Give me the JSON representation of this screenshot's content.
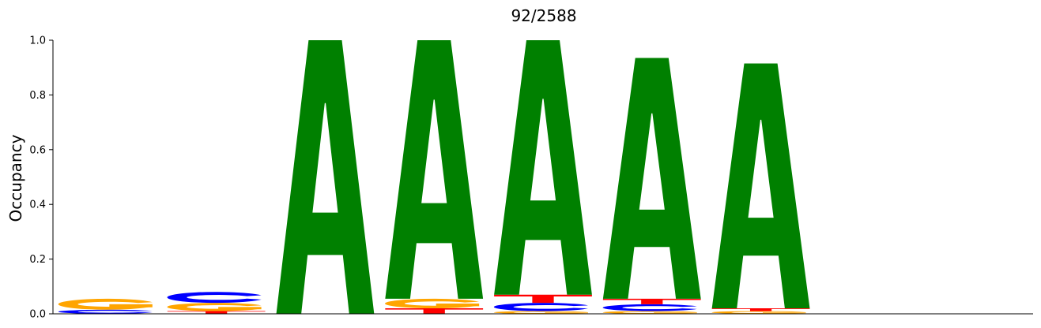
{
  "chart_data": {
    "type": "sequence-logo",
    "title": "92/2588",
    "xlabel": "",
    "ylabel": "Occupancy",
    "ylim": [
      0,
      1.0
    ],
    "yticks": [
      "0.0",
      "0.2",
      "0.4",
      "0.6",
      "0.8",
      "1.0"
    ],
    "grid": false,
    "colors": {
      "A": "#008000",
      "C": "#0000ff",
      "G": "#ffa500",
      "T": "#ff0000"
    },
    "positions": [
      {
        "index": 1,
        "letters": [
          {
            "base": "C",
            "value": 0.015
          },
          {
            "base": "G",
            "value": 0.04
          }
        ]
      },
      {
        "index": 2,
        "letters": [
          {
            "base": "T",
            "value": 0.01
          },
          {
            "base": "G",
            "value": 0.03
          },
          {
            "base": "C",
            "value": 0.04
          }
        ]
      },
      {
        "index": 3,
        "letters": [
          {
            "base": "A",
            "value": 1.0
          }
        ]
      },
      {
        "index": 4,
        "letters": [
          {
            "base": "T",
            "value": 0.02
          },
          {
            "base": "G",
            "value": 0.035
          },
          {
            "base": "A",
            "value": 0.945
          }
        ]
      },
      {
        "index": 5,
        "letters": [
          {
            "base": "G",
            "value": 0.01
          },
          {
            "base": "C",
            "value": 0.03
          },
          {
            "base": "T",
            "value": 0.03
          },
          {
            "base": "A",
            "value": 0.93
          }
        ]
      },
      {
        "index": 6,
        "letters": [
          {
            "base": "G",
            "value": 0.01
          },
          {
            "base": "C",
            "value": 0.025
          },
          {
            "base": "T",
            "value": 0.02
          },
          {
            "base": "A",
            "value": 0.88
          }
        ]
      },
      {
        "index": 7,
        "letters": [
          {
            "base": "G",
            "value": 0.01
          },
          {
            "base": "T",
            "value": 0.01
          },
          {
            "base": "A",
            "value": 0.895
          }
        ]
      },
      {
        "index": 8,
        "letters": []
      },
      {
        "index": 9,
        "letters": []
      }
    ]
  }
}
